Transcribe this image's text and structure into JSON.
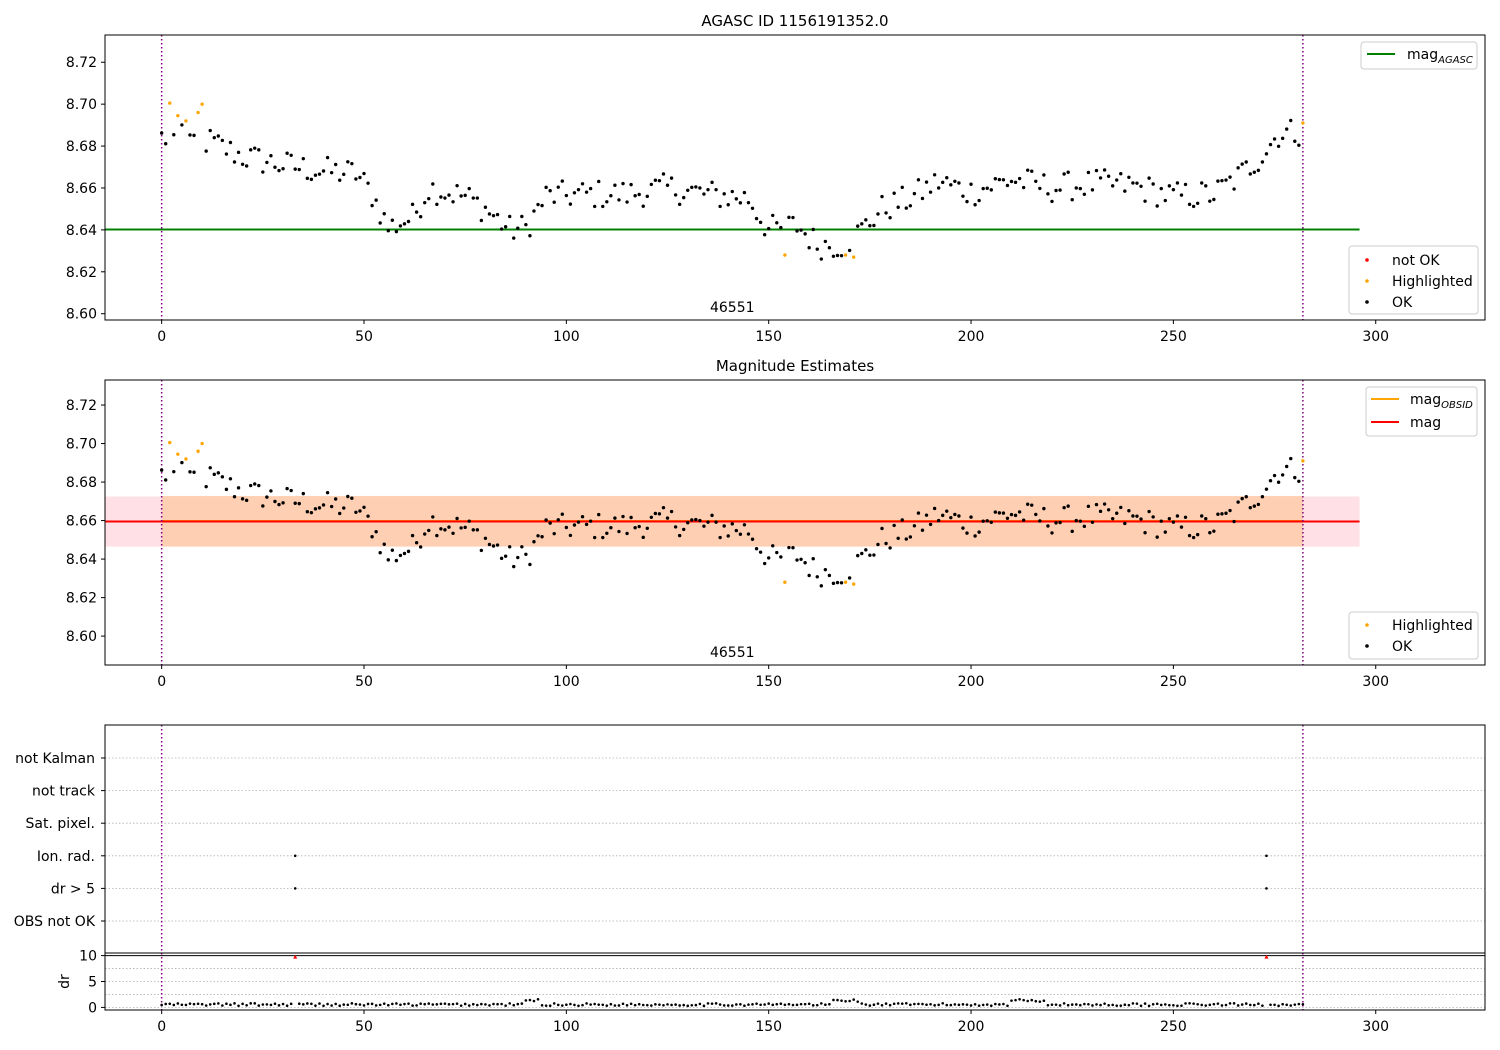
{
  "chart_data": [
    {
      "id": "agasc",
      "type": "scatter",
      "title": "AGASC ID 1156191352.0",
      "xlim": [
        -14,
        327
      ],
      "ylim": [
        8.597,
        8.733
      ],
      "xticks": [
        0,
        50,
        100,
        150,
        200,
        250,
        300
      ],
      "yticks": [
        8.6,
        8.62,
        8.64,
        8.66,
        8.68,
        8.7,
        8.72
      ],
      "ytick_labels": [
        "8.60",
        "8.62",
        "8.64",
        "8.66",
        "8.68",
        "8.70",
        "8.72"
      ],
      "vlines": [
        0,
        282
      ],
      "annotation": {
        "x": 141,
        "text": "46551"
      },
      "hline": {
        "y": 8.6402,
        "x_end": 296,
        "color": "#008000"
      },
      "legend_lines": [
        {
          "label": "mag",
          "subscript": "AGASC",
          "color": "#008000"
        }
      ],
      "legend_markers": [
        {
          "label": "not OK",
          "color": "#ff0000"
        },
        {
          "label": "Highlighted",
          "color": "#ffa500"
        },
        {
          "label": "OK",
          "color": "#000000"
        }
      ],
      "highlighted": [
        [
          2,
          8.7005
        ],
        [
          4,
          8.6945
        ],
        [
          6,
          8.692
        ],
        [
          9,
          8.696
        ],
        [
          10,
          8.7
        ],
        [
          154,
          8.628
        ],
        [
          169,
          8.628
        ],
        [
          171,
          8.627
        ],
        [
          282,
          8.691
        ]
      ],
      "not_ok": []
    },
    {
      "id": "estimates",
      "type": "scatter",
      "title": "Magnitude Estimates",
      "xlim": [
        -14,
        327
      ],
      "ylim": [
        8.585,
        8.733
      ],
      "xticks": [
        0,
        50,
        100,
        150,
        200,
        250,
        300
      ],
      "yticks": [
        8.6,
        8.62,
        8.64,
        8.66,
        8.68,
        8.7,
        8.72
      ],
      "ytick_labels": [
        "8.60",
        "8.62",
        "8.64",
        "8.66",
        "8.68",
        "8.70",
        "8.72"
      ],
      "vlines": [
        0,
        282
      ],
      "annotation": {
        "x": 141,
        "text": "46551"
      },
      "mag": {
        "y": 8.6595,
        "band": [
          8.6465,
          8.6725
        ],
        "x_start": -14,
        "x_end": 296,
        "color": "#ff0000",
        "band_color": "#ffdde3"
      },
      "mag_obsid": {
        "y": 8.6598,
        "band": [
          8.6465,
          8.6728
        ],
        "x_start": 0,
        "x_end": 282,
        "color": "#ffa500",
        "band_color": "#ffcba6"
      },
      "legend_lines": [
        {
          "label": "mag",
          "subscript": "OBSID",
          "color": "#ffa500"
        },
        {
          "label": "mag",
          "subscript": "",
          "color": "#ff0000"
        }
      ],
      "legend_markers": [
        {
          "label": "Highlighted",
          "color": "#ffa500"
        },
        {
          "label": "OK",
          "color": "#000000"
        }
      ],
      "highlighted": [
        [
          2,
          8.7005
        ],
        [
          4,
          8.6945
        ],
        [
          6,
          8.692
        ],
        [
          9,
          8.696
        ],
        [
          10,
          8.7
        ],
        [
          154,
          8.628
        ],
        [
          169,
          8.628
        ],
        [
          171,
          8.627
        ],
        [
          282,
          8.691
        ]
      ]
    },
    {
      "id": "flags",
      "type": "scatter",
      "xlim": [
        -14,
        327
      ],
      "vlines": [
        0,
        282
      ],
      "categories": [
        "not Kalman",
        "not track",
        "Sat. pixel.",
        "Ion. rad.",
        "dr > 5",
        "OBS not OK"
      ],
      "flag_points": [
        {
          "category": "Ion. rad.",
          "x": [
            33,
            273
          ]
        },
        {
          "category": "dr > 5",
          "x": [
            33,
            273
          ]
        }
      ]
    },
    {
      "id": "dr",
      "type": "scatter",
      "xlim": [
        -14,
        327
      ],
      "ylim": [
        -0.5,
        10.5
      ],
      "ylabel": "dr",
      "yticks": [
        0,
        5,
        10
      ],
      "ytick_labels": [
        "0",
        "5",
        "10"
      ],
      "xticks": [
        0,
        50,
        100,
        150,
        200,
        250,
        300
      ],
      "vlines": [
        0,
        282
      ],
      "hline": 10,
      "clipped_points": [
        33,
        273
      ],
      "noisy_range": [
        [
          90,
          93
        ],
        [
          166,
          172
        ],
        [
          210,
          218
        ]
      ]
    }
  ],
  "colors": {
    "vline": "#800080",
    "grid": "#b0b0b0",
    "ok": "#000000",
    "highlighted": "#ffa500",
    "not_ok": "#ff0000"
  }
}
